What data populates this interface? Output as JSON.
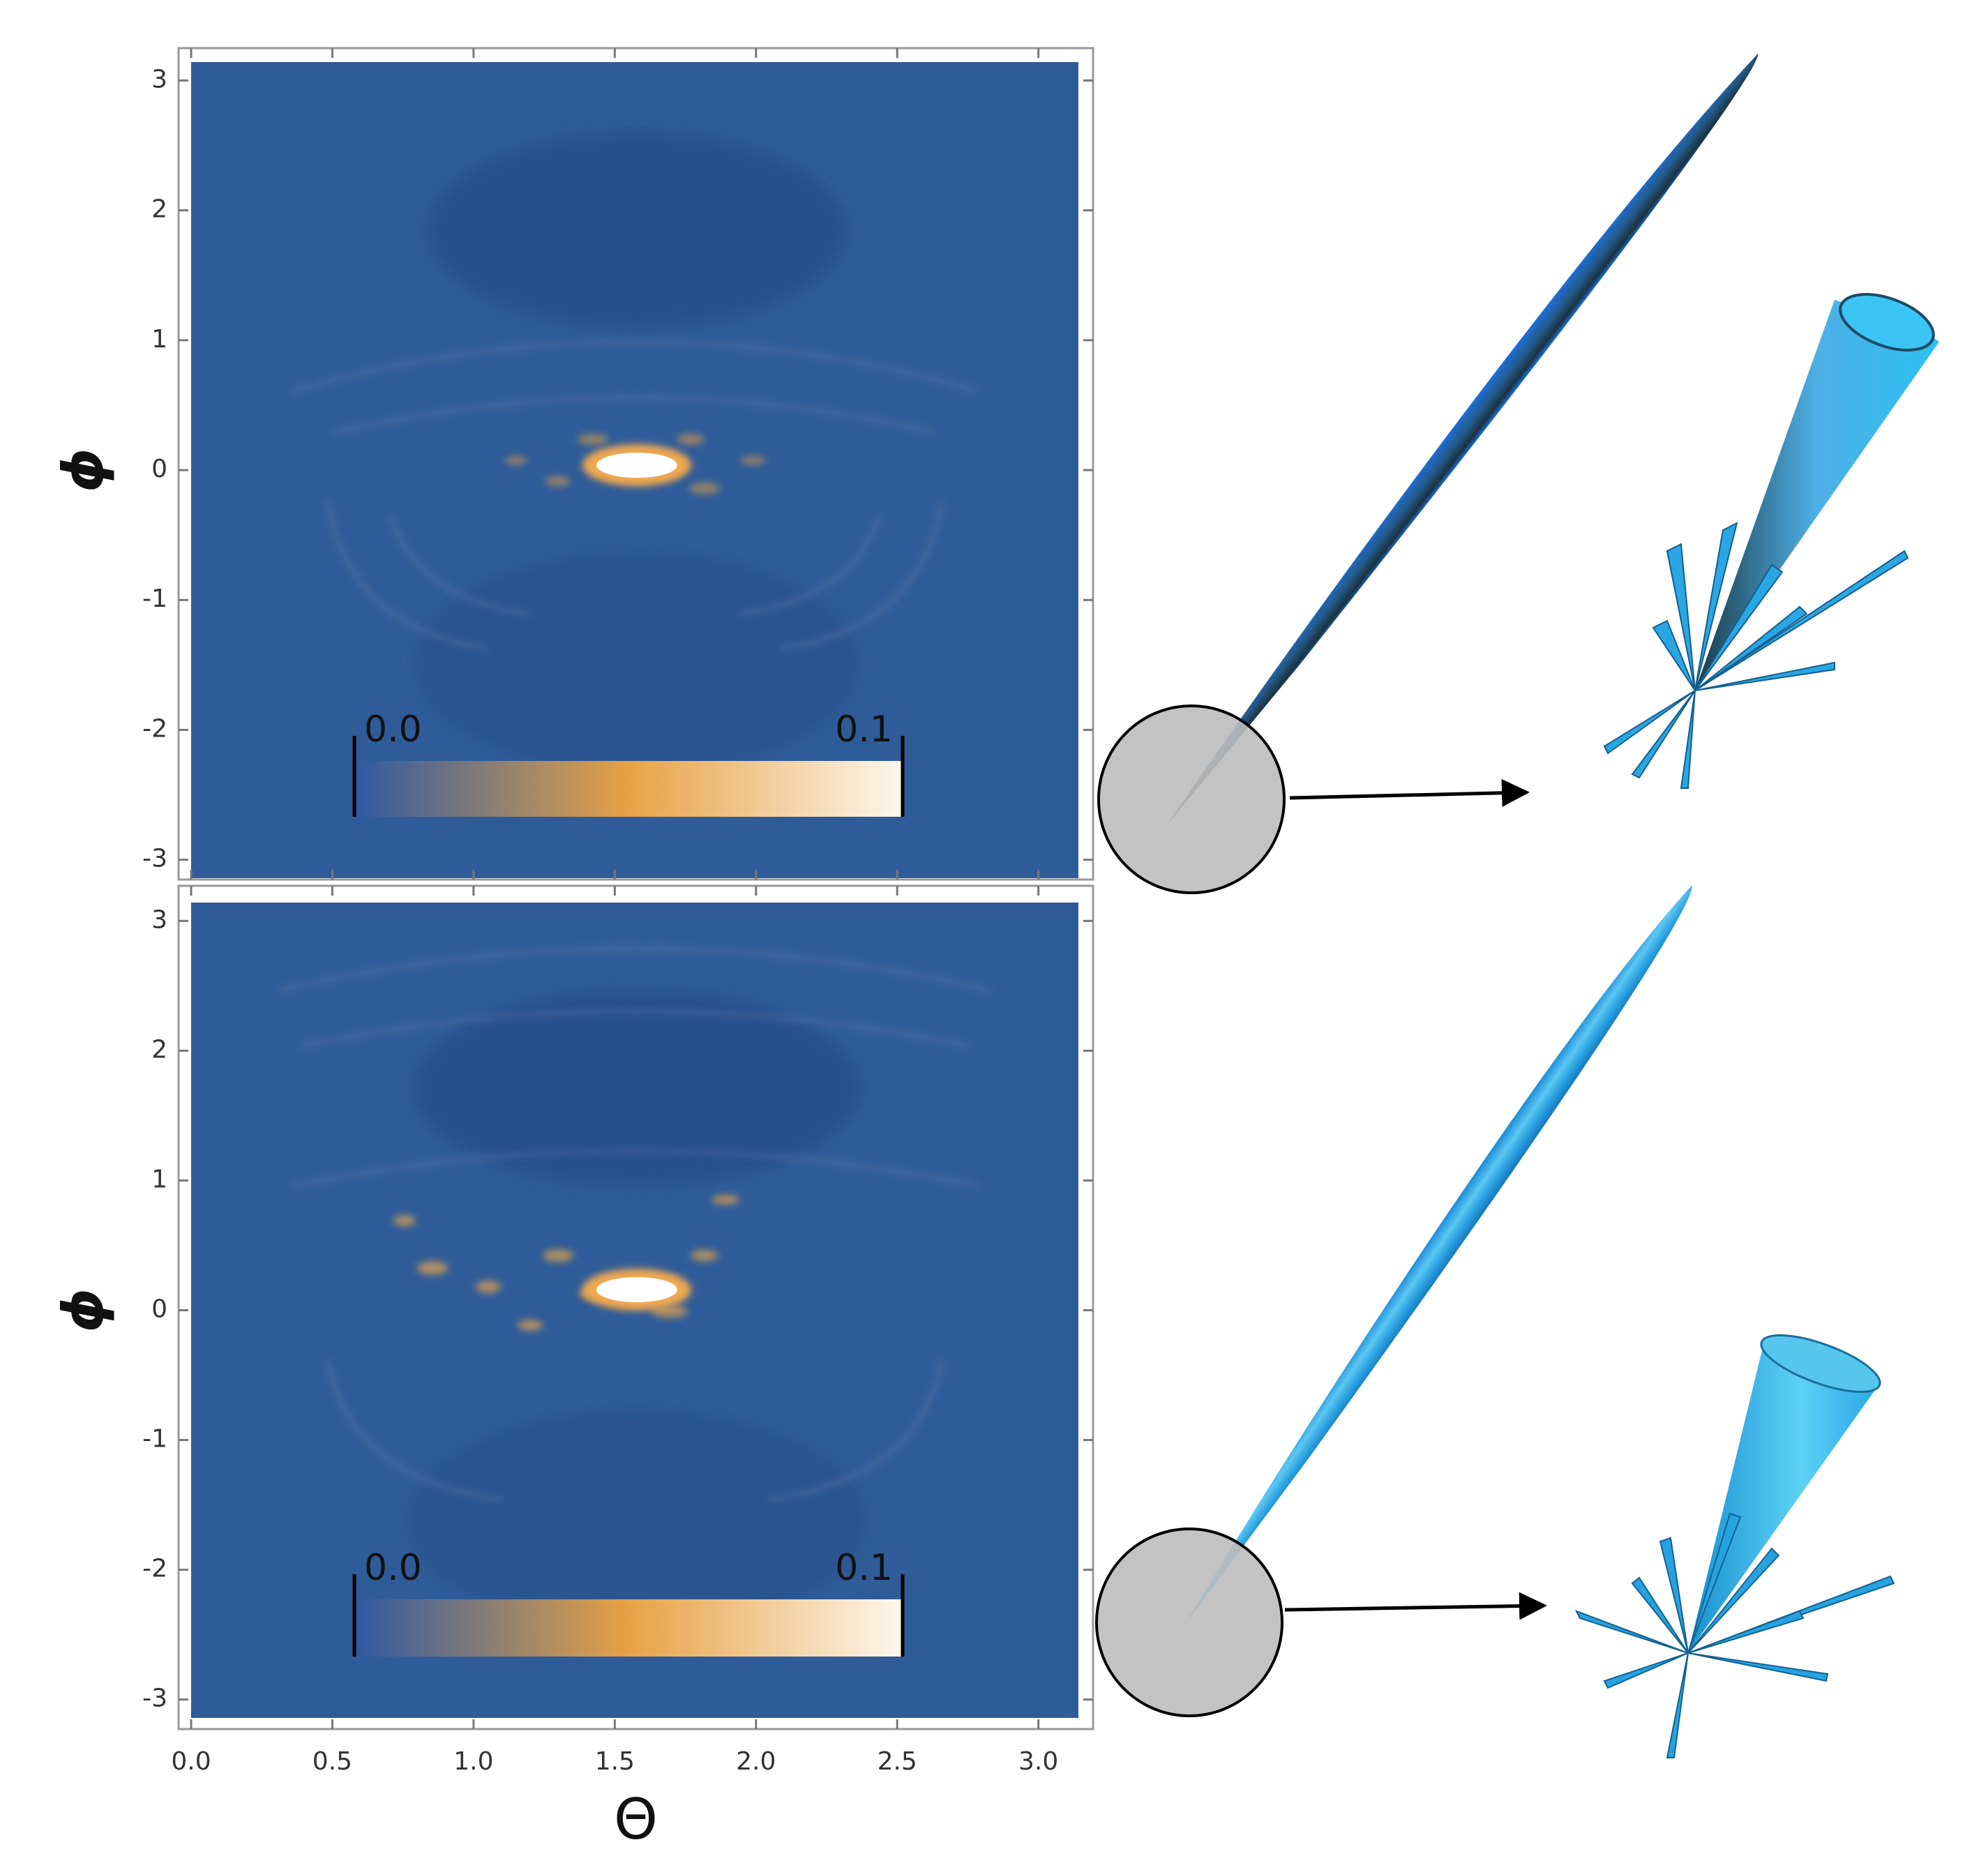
{
  "chart_data": [
    {
      "type": "heatmap",
      "ylabel": "ϕ",
      "xlim": [
        0,
        3.1416
      ],
      "ylim": [
        -3.1416,
        3.1416
      ],
      "xticks": [
        0,
        0.5,
        1,
        1.5,
        2,
        2.5,
        3
      ],
      "yticks": [
        -3,
        -2,
        -1,
        0,
        1,
        2,
        3
      ],
      "zlim": [
        0,
        0.1
      ],
      "zticks": [
        {
          "value": 0,
          "label": "0.0"
        },
        0.1
      ],
      "colormap": [
        "#2d59a3",
        "#e8a245",
        "#fdf7ee"
      ]
    },
    {
      "type": "heatmap",
      "xlabel": "Θ",
      "ylabel": "ϕ",
      "xlim": [
        0,
        3.1416
      ],
      "ylim": [
        -3.1416,
        3.1416
      ],
      "xticks": [
        {
          "value": 0,
          "label": "0.0"
        },
        {
          "value": 0.5,
          "label": "0.5"
        },
        {
          "value": 1,
          "label": "1.0"
        },
        {
          "value": 1.5,
          "label": "1.5"
        },
        {
          "value": 2,
          "label": "2.0"
        },
        {
          "value": 2.5,
          "label": "2.5"
        },
        {
          "value": 3,
          "label": "3.0"
        }
      ],
      "yticks": [
        -3,
        -2,
        -1,
        0,
        1,
        2,
        3
      ],
      "zlim": [
        0,
        0.1
      ],
      "zticks": [
        {
          "value": 0,
          "label": "0.0"
        },
        0.1
      ],
      "colormap": [
        "#2d59a3",
        "#e8a245",
        "#fdf7ee"
      ]
    }
  ]
}
